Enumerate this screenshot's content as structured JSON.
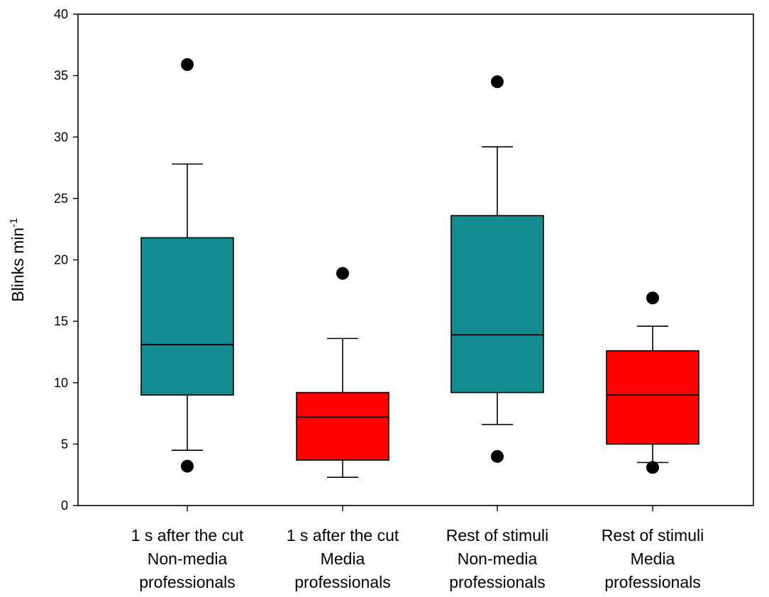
{
  "chart_data": {
    "type": "boxplot",
    "title": "",
    "ylabel": "Blinks min",
    "ylabel_superscript": "-1",
    "ylim": [
      0,
      40
    ],
    "yticks": [
      0,
      5,
      10,
      15,
      20,
      25,
      30,
      35,
      40
    ],
    "categories": [
      [
        "1 s after the cut",
        "Non-media",
        "professionals"
      ],
      [
        "1 s after the cut",
        "Media",
        "professionals"
      ],
      [
        "Rest of stimuli",
        "Non-media",
        "professionals"
      ],
      [
        "Rest of stimuli",
        "Media",
        "professionals"
      ]
    ],
    "boxes": [
      {
        "group": "Non-media professionals",
        "whisker_low": 4.5,
        "q1": 9.0,
        "median": 13.1,
        "q3": 21.8,
        "whisker_high": 27.8,
        "outliers": [
          3.2,
          35.9
        ],
        "color": "#138b8f"
      },
      {
        "group": "Media professionals",
        "whisker_low": 2.3,
        "q1": 3.7,
        "median": 7.2,
        "q3": 9.2,
        "whisker_high": 13.6,
        "outliers": [
          18.9
        ],
        "color": "#ff0000"
      },
      {
        "group": "Non-media professionals",
        "whisker_low": 6.6,
        "q1": 9.2,
        "median": 13.9,
        "q3": 23.6,
        "whisker_high": 29.2,
        "outliers": [
          4.0,
          34.5
        ],
        "color": "#138b8f"
      },
      {
        "group": "Media professionals",
        "whisker_low": 3.5,
        "q1": 5.0,
        "median": 9.0,
        "q3": 12.6,
        "whisker_high": 14.6,
        "outliers": [
          3.1,
          16.9
        ],
        "color": "#ff0000"
      }
    ]
  }
}
